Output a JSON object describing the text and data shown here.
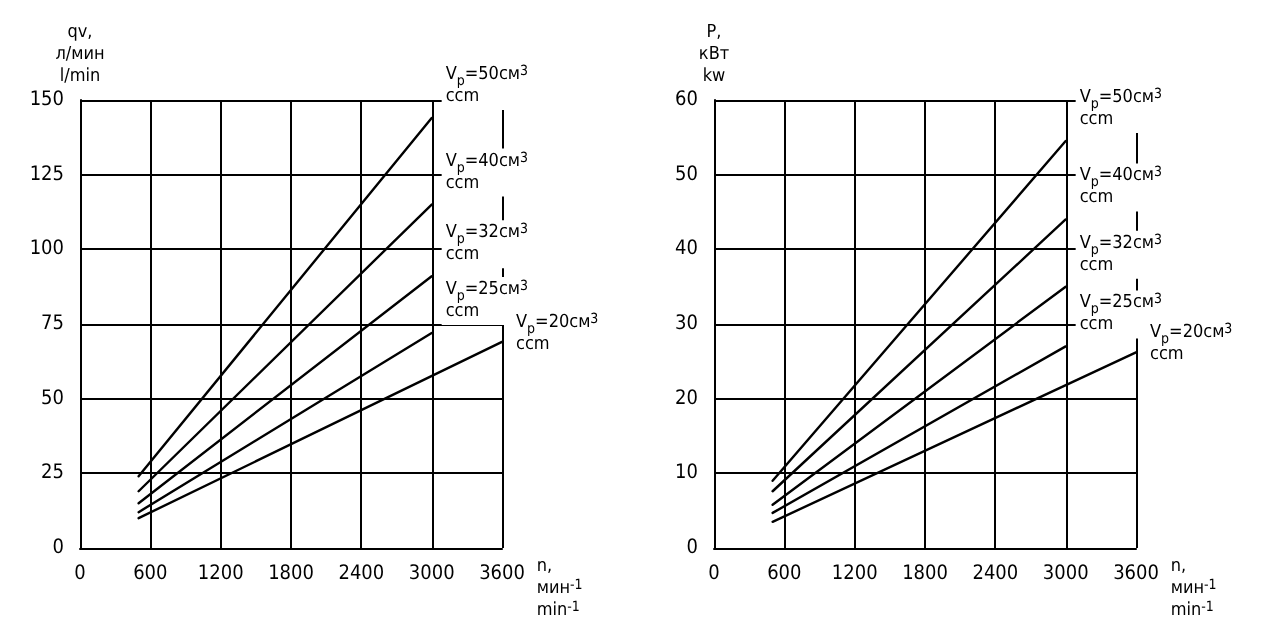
{
  "chart_data": [
    {
      "type": "line",
      "xlabel": "n,\nмин$^{-1}$\nmin$^{-1}$",
      "ylabel": "qv,\nл/мин\nl/min",
      "xlim": [
        0,
        3600
      ],
      "xticks": [
        0,
        600,
        1200,
        1800,
        2400,
        3000,
        3600
      ],
      "ylim": [
        0,
        150
      ],
      "yticks": [
        0,
        25,
        50,
        75,
        100,
        125,
        150
      ],
      "grid": true,
      "marker": "none",
      "series": [
        {
          "name": "V$_{p}$=50см$^{3}$\nccm",
          "color": "#000000",
          "x": [
            500,
            3000
          ],
          "values": [
            24,
            144
          ]
        },
        {
          "name": "V$_{p}$=40см$^{3}$\nccm",
          "color": "#000000",
          "x": [
            500,
            3000
          ],
          "values": [
            19,
            115
          ]
        },
        {
          "name": "V$_{p}$=32см$^{3}$\nccm",
          "color": "#000000",
          "x": [
            500,
            3000
          ],
          "values": [
            15,
            91
          ]
        },
        {
          "name": "V$_{p}$=25см$^{3}$\nccm",
          "color": "#000000",
          "x": [
            500,
            3000
          ],
          "values": [
            12,
            72
          ]
        },
        {
          "name": "V$_{p}$=20см$^{3}$\nccm",
          "color": "#000000",
          "x": [
            500,
            3600
          ],
          "values": [
            10,
            69
          ]
        }
      ]
    },
    {
      "type": "line",
      "xlabel": "n,\nмин$^{-1}$\nmin$^{-1}$",
      "ylabel": "P,\nкВт\nkw",
      "xlim": [
        0,
        3600
      ],
      "xticks": [
        0,
        600,
        1200,
        1800,
        2400,
        3000,
        3600
      ],
      "ylim": [
        0,
        60
      ],
      "yticks": [
        0,
        10,
        20,
        30,
        40,
        50,
        60
      ],
      "grid": true,
      "marker": "none",
      "series": [
        {
          "name": "V$_{p}$=50см$^{3}$\nccm",
          "color": "#000000",
          "x": [
            500,
            3000
          ],
          "values": [
            9,
            54.5
          ]
        },
        {
          "name": "V$_{p}$=40см$^{3}$\nccm",
          "color": "#000000",
          "x": [
            500,
            3000
          ],
          "values": [
            7.6,
            44
          ]
        },
        {
          "name": "V$_{p}$=32см$^{3}$\nccm",
          "color": "#000000",
          "x": [
            500,
            3000
          ],
          "values": [
            5.8,
            35
          ]
        },
        {
          "name": "V$_{p}$=25см$^{3}$\nccm",
          "color": "#000000",
          "x": [
            500,
            3000
          ],
          "values": [
            4.7,
            27
          ]
        },
        {
          "name": "V$_{p}$=20см$^{3}$\nccm",
          "color": "#000000",
          "x": [
            500,
            3600
          ],
          "values": [
            3.5,
            26.2
          ]
        }
      ]
    }
  ]
}
